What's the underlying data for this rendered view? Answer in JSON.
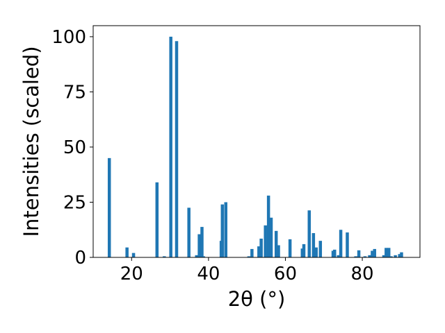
{
  "chart_data": {
    "type": "bar",
    "title": "",
    "xlabel": "2θ (°)",
    "ylabel": "Intensities (scaled)",
    "xlim": [
      10,
      95
    ],
    "ylim": [
      0,
      105
    ],
    "xticks": [
      20,
      40,
      60,
      80
    ],
    "yticks": [
      0,
      25,
      50,
      75,
      100
    ],
    "grid": false,
    "legend": false,
    "bar_color": "#1f77b4",
    "x": [
      14.2,
      18.8,
      20.5,
      26.6,
      28.5,
      30.2,
      31.7,
      34.9,
      36.9,
      37.6,
      38.3,
      38.7,
      43.3,
      43.6,
      44.5,
      50.5,
      51.3,
      53.1,
      53.7,
      54.8,
      55.6,
      56.3,
      57.6,
      58.2,
      61.2,
      64.4,
      64.8,
      66.2,
      67.3,
      68.0,
      69.1,
      72.4,
      72.8,
      73.8,
      74.4,
      76.1,
      78.3,
      79.1,
      80.7,
      81.9,
      82.6,
      83.2,
      85.6,
      86.2,
      86.9,
      87.5,
      88.6,
      89.7,
      90.2
    ],
    "values": [
      45,
      4.5,
      2,
      34,
      0.5,
      100,
      98,
      22.5,
      1,
      10.5,
      13.8,
      0.5,
      7.5,
      24,
      25,
      0.5,
      3.8,
      5,
      8.5,
      14.5,
      28,
      18,
      12,
      5.5,
      8.2,
      4,
      6,
      21.3,
      11,
      4.5,
      7.5,
      3,
      3.5,
      1,
      12.5,
      11.3,
      0.5,
      3.2,
      0.5,
      1,
      3,
      3.8,
      1,
      4.3,
      4.3,
      0.5,
      1,
      1.5,
      2.3
    ]
  }
}
